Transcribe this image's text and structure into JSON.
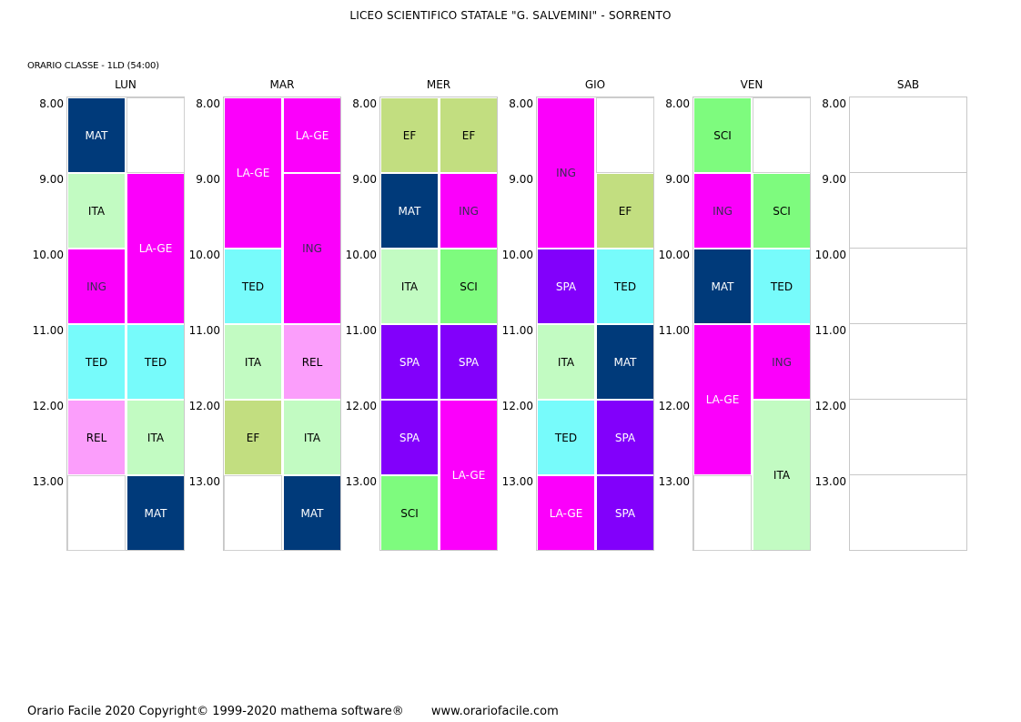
{
  "title": "LICEO SCIENTIFICO STATALE \"G. SALVEMINI\" - SORRENTO",
  "class_label": "ORARIO CLASSE  -  1LD  (54:00)",
  "times": [
    "8.00",
    "9.00",
    "10.00",
    "11.00",
    "12.00",
    "13.00"
  ],
  "subject_colors": {
    "MAT": {
      "bg": "#003a7a",
      "fg": "#ffffff"
    },
    "ITA": {
      "bg": "#c2fbc2",
      "fg": "#000000"
    },
    "ING": {
      "bg": "#fb00fb",
      "fg": "#3a2a55"
    },
    "LA-GE": {
      "bg": "#fb00fb",
      "fg": "#ffffff"
    },
    "TED": {
      "bg": "#77fbfb",
      "fg": "#000000"
    },
    "REL": {
      "bg": "#fb9efb",
      "fg": "#000000"
    },
    "EF": {
      "bg": "#c2de80",
      "fg": "#000000"
    },
    "SCI": {
      "bg": "#7efb7e",
      "fg": "#000000"
    },
    "SPA": {
      "bg": "#8200fb",
      "fg": "#ffffff"
    }
  },
  "days": [
    {
      "name": "LUN",
      "col1": [
        {
          "subj": "MAT",
          "span": 1
        },
        {
          "subj": "ITA",
          "span": 1
        },
        {
          "subj": "ING",
          "span": 1
        },
        {
          "subj": "TED",
          "span": 1
        },
        {
          "subj": "REL",
          "span": 1
        },
        {
          "subj": "",
          "span": 1
        }
      ],
      "col2": [
        {
          "subj": "",
          "span": 1
        },
        {
          "subj": "LA-GE",
          "span": 2
        },
        {
          "subj": "TED",
          "span": 1
        },
        {
          "subj": "ITA",
          "span": 1
        },
        {
          "subj": "MAT",
          "span": 1
        }
      ]
    },
    {
      "name": "MAR",
      "col1": [
        {
          "subj": "LA-GE",
          "span": 2,
          "top": true
        },
        {
          "subj": "TED",
          "span": 1
        },
        {
          "subj": "ITA",
          "span": 1
        },
        {
          "subj": "EF",
          "span": 1
        },
        {
          "subj": "",
          "span": 1
        }
      ],
      "col2": [
        {
          "subj": "LA-GE",
          "span": 1
        },
        {
          "subj": "ING",
          "span": 2
        },
        {
          "subj": "REL",
          "span": 1
        },
        {
          "subj": "ITA",
          "span": 1
        },
        {
          "subj": "MAT",
          "span": 1
        }
      ]
    },
    {
      "name": "MER",
      "col1": [
        {
          "subj": "EF",
          "span": 1
        },
        {
          "subj": "MAT",
          "span": 1
        },
        {
          "subj": "ITA",
          "span": 1
        },
        {
          "subj": "SPA",
          "span": 1
        },
        {
          "subj": "SPA",
          "span": 1
        },
        {
          "subj": "SCI",
          "span": 1
        }
      ],
      "col2": [
        {
          "subj": "EF",
          "span": 1
        },
        {
          "subj": "ING",
          "span": 1
        },
        {
          "subj": "SCI",
          "span": 1
        },
        {
          "subj": "SPA",
          "span": 1
        },
        {
          "subj": "LA-GE",
          "span": 2
        }
      ]
    },
    {
      "name": "GIO",
      "col1": [
        {
          "subj": "ING",
          "span": 2,
          "top": true
        },
        {
          "subj": "SPA",
          "span": 1
        },
        {
          "subj": "ITA",
          "span": 1
        },
        {
          "subj": "TED",
          "span": 1
        },
        {
          "subj": "LA-GE",
          "span": 1
        }
      ],
      "col2": [
        {
          "subj": "",
          "span": 1
        },
        {
          "subj": "EF",
          "span": 1
        },
        {
          "subj": "TED",
          "span": 1
        },
        {
          "subj": "MAT",
          "span": 1
        },
        {
          "subj": "SPA",
          "span": 1
        },
        {
          "subj": "SPA",
          "span": 1
        }
      ]
    },
    {
      "name": "VEN",
      "col1": [
        {
          "subj": "SCI",
          "span": 1
        },
        {
          "subj": "ING",
          "span": 1
        },
        {
          "subj": "MAT",
          "span": 1
        },
        {
          "subj": "LA-GE",
          "span": 2,
          "top": true
        },
        {
          "subj": "",
          "span": 1
        }
      ],
      "col2": [
        {
          "subj": "",
          "span": 1
        },
        {
          "subj": "SCI",
          "span": 1
        },
        {
          "subj": "TED",
          "span": 1
        },
        {
          "subj": "ING",
          "span": 1
        },
        {
          "subj": "ITA",
          "span": 2
        }
      ]
    },
    {
      "name": "SAB",
      "empty": true
    }
  ],
  "footer": {
    "text": "Orario Facile 2020  Copyright© 1999-2020 mathema software®",
    "url": "www.orariofacile.com"
  }
}
